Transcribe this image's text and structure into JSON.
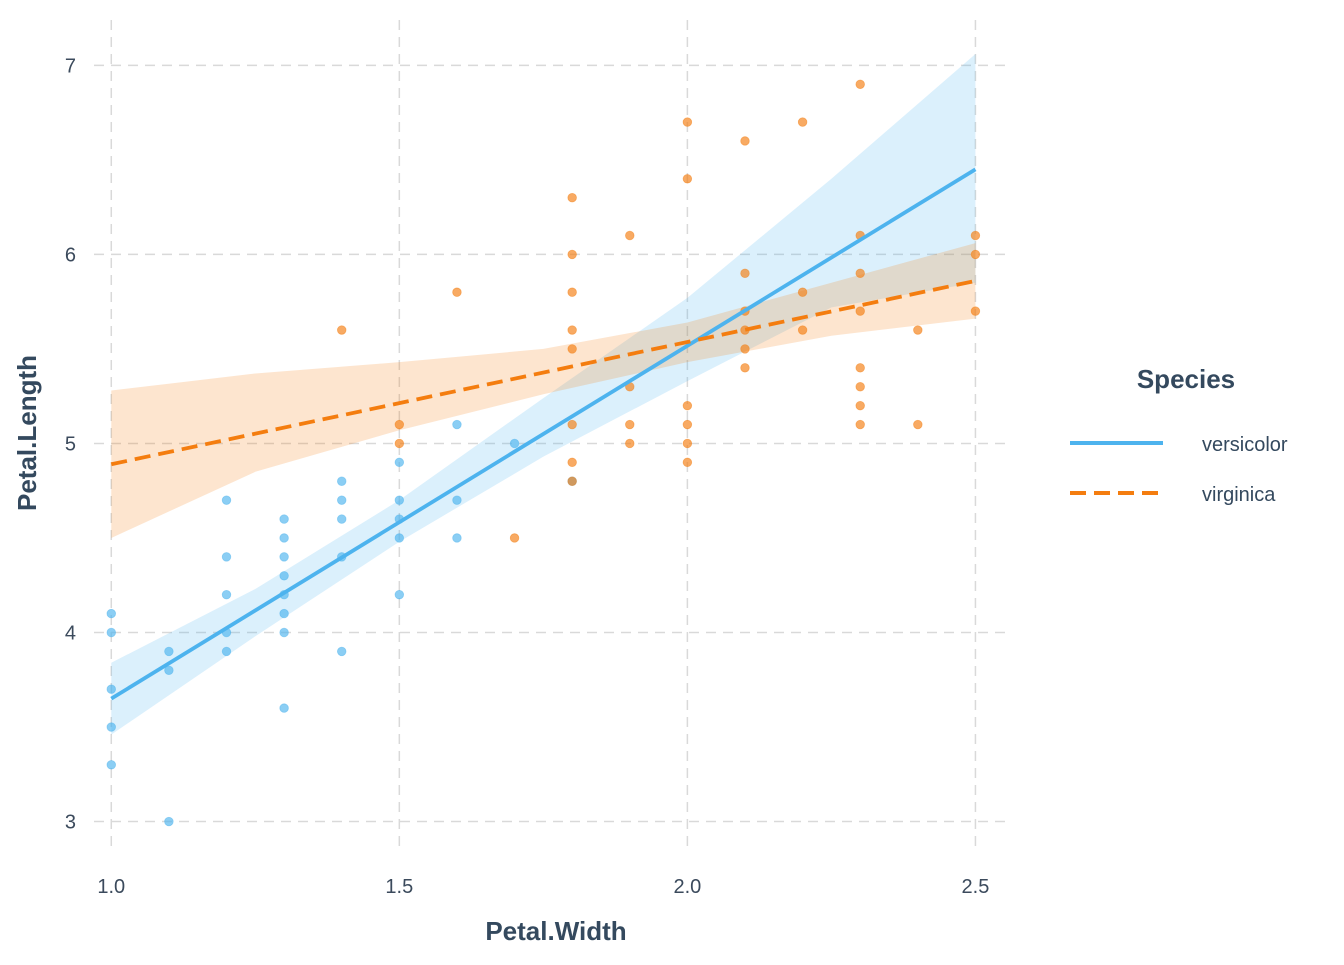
{
  "chart_data": {
    "type": "scatter",
    "xlabel": "Petal.Width",
    "ylabel": "Petal.Length",
    "xlim": [
      0.97,
      2.56
    ],
    "ylim": [
      2.86,
      7.24
    ],
    "x_ticks": [
      1.0,
      1.5,
      2.0,
      2.5
    ],
    "x_tick_labels": [
      "1.0",
      "1.5",
      "2.0",
      "2.5"
    ],
    "y_ticks": [
      3,
      4,
      5,
      6,
      7
    ],
    "y_tick_labels": [
      "3",
      "4",
      "5",
      "6",
      "7"
    ],
    "grid": true,
    "legend": {
      "title": "Species",
      "placement": "right"
    },
    "series": [
      {
        "name": "versicolor",
        "color": "#4db3ee",
        "line_style": "solid",
        "points": [
          [
            1.0,
            3.3
          ],
          [
            1.0,
            3.5
          ],
          [
            1.0,
            3.7
          ],
          [
            1.0,
            4.0
          ],
          [
            1.0,
            4.1
          ],
          [
            1.1,
            3.0
          ],
          [
            1.1,
            3.8
          ],
          [
            1.1,
            3.9
          ],
          [
            1.2,
            3.9
          ],
          [
            1.2,
            4.0
          ],
          [
            1.2,
            4.2
          ],
          [
            1.2,
            4.4
          ],
          [
            1.2,
            4.7
          ],
          [
            1.3,
            3.6
          ],
          [
            1.3,
            4.0
          ],
          [
            1.3,
            4.1
          ],
          [
            1.3,
            4.2
          ],
          [
            1.3,
            4.3
          ],
          [
            1.3,
            4.4
          ],
          [
            1.3,
            4.5
          ],
          [
            1.3,
            4.6
          ],
          [
            1.4,
            3.9
          ],
          [
            1.4,
            4.4
          ],
          [
            1.4,
            4.6
          ],
          [
            1.4,
            4.7
          ],
          [
            1.4,
            4.8
          ],
          [
            1.5,
            4.2
          ],
          [
            1.5,
            4.5
          ],
          [
            1.5,
            4.6
          ],
          [
            1.5,
            4.7
          ],
          [
            1.5,
            4.9
          ],
          [
            1.6,
            4.5
          ],
          [
            1.6,
            4.7
          ],
          [
            1.6,
            5.1
          ],
          [
            1.7,
            5.0
          ],
          [
            1.8,
            4.8
          ]
        ],
        "fit": {
          "x": [
            1.0,
            2.5
          ],
          "y": [
            3.65,
            6.45
          ]
        },
        "ribbon": {
          "x": [
            1.0,
            1.25,
            1.5,
            1.75,
            2.0,
            2.25,
            2.5
          ],
          "lower": [
            3.46,
            3.98,
            4.48,
            4.93,
            5.33,
            5.72,
            5.85
          ],
          "upper": [
            3.84,
            4.23,
            4.7,
            5.24,
            5.77,
            6.4,
            7.06
          ]
        }
      },
      {
        "name": "virginica",
        "color": "#f47d0f",
        "line_style": "dashed",
        "points": [
          [
            1.4,
            5.6
          ],
          [
            1.5,
            5.0
          ],
          [
            1.5,
            5.1
          ],
          [
            1.6,
            5.8
          ],
          [
            1.7,
            4.5
          ],
          [
            1.8,
            4.8
          ],
          [
            1.8,
            4.9
          ],
          [
            1.8,
            5.1
          ],
          [
            1.8,
            5.5
          ],
          [
            1.8,
            5.6
          ],
          [
            1.8,
            5.8
          ],
          [
            1.8,
            6.0
          ],
          [
            1.8,
            6.3
          ],
          [
            1.9,
            5.0
          ],
          [
            1.9,
            5.1
          ],
          [
            1.9,
            5.3
          ],
          [
            1.9,
            6.1
          ],
          [
            2.0,
            4.9
          ],
          [
            2.0,
            5.0
          ],
          [
            2.0,
            5.1
          ],
          [
            2.0,
            5.2
          ],
          [
            2.0,
            6.4
          ],
          [
            2.0,
            6.7
          ],
          [
            2.1,
            5.4
          ],
          [
            2.1,
            5.5
          ],
          [
            2.1,
            5.6
          ],
          [
            2.1,
            5.7
          ],
          [
            2.1,
            5.9
          ],
          [
            2.1,
            6.6
          ],
          [
            2.2,
            5.6
          ],
          [
            2.2,
            5.8
          ],
          [
            2.2,
            6.7
          ],
          [
            2.3,
            5.1
          ],
          [
            2.3,
            5.2
          ],
          [
            2.3,
            5.3
          ],
          [
            2.3,
            5.4
          ],
          [
            2.3,
            5.7
          ],
          [
            2.3,
            5.9
          ],
          [
            2.3,
            6.1
          ],
          [
            2.3,
            6.9
          ],
          [
            2.4,
            5.1
          ],
          [
            2.4,
            5.6
          ],
          [
            2.5,
            5.7
          ],
          [
            2.5,
            6.0
          ],
          [
            2.5,
            6.1
          ]
        ],
        "fit": {
          "x": [
            1.0,
            2.5
          ],
          "y": [
            4.89,
            5.86
          ]
        },
        "ribbon": {
          "x": [
            1.0,
            1.25,
            1.5,
            1.75,
            2.0,
            2.25,
            2.5
          ],
          "lower": [
            4.5,
            4.85,
            5.07,
            5.26,
            5.43,
            5.57,
            5.66
          ],
          "upper": [
            5.28,
            5.37,
            5.43,
            5.5,
            5.64,
            5.85,
            6.06
          ]
        }
      }
    ]
  }
}
